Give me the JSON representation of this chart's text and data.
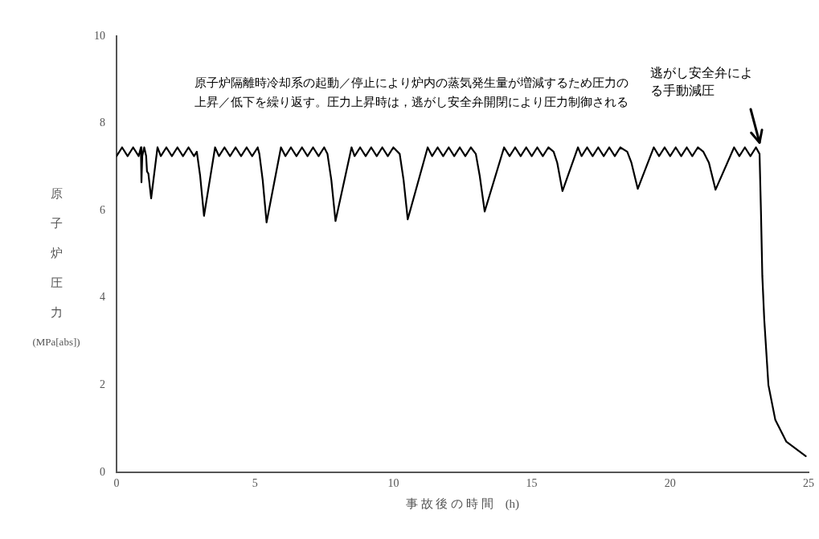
{
  "chart_data": {
    "type": "line",
    "xlabel": "事故後の時間 (h)",
    "ylabel": "原子炉圧力 (MPa[abs])",
    "xlim": [
      0,
      25
    ],
    "xticks": [
      0,
      5,
      10,
      15,
      20,
      25
    ],
    "ylim": [
      0,
      10
    ],
    "yticks": [
      0,
      2,
      4,
      6,
      8,
      10
    ],
    "grid": false,
    "legend": false,
    "marker": "none",
    "line_style": "solid",
    "series": [
      {
        "color": "#000000",
        "x": [
          0,
          0.2,
          0.4,
          0.6,
          0.8,
          0.88,
          0.9,
          0.93,
          1.0,
          1.07,
          1.1,
          1.15,
          1.25,
          1.48,
          1.6,
          1.8,
          2.0,
          2.2,
          2.4,
          2.6,
          2.8,
          2.9,
          3.02,
          3.16,
          3.56,
          3.7,
          3.9,
          4.1,
          4.3,
          4.5,
          4.7,
          4.9,
          5.1,
          5.16,
          5.28,
          5.42,
          5.94,
          6.1,
          6.3,
          6.5,
          6.7,
          6.9,
          7.1,
          7.3,
          7.5,
          7.62,
          7.76,
          7.91,
          8.49,
          8.6,
          8.8,
          9.0,
          9.2,
          9.4,
          9.6,
          9.8,
          10.0,
          10.23,
          10.37,
          10.52,
          11.24,
          11.4,
          11.6,
          11.8,
          12.0,
          12.2,
          12.4,
          12.6,
          12.8,
          12.98,
          13.12,
          13.3,
          14.0,
          14.2,
          14.4,
          14.6,
          14.8,
          15.0,
          15.2,
          15.4,
          15.6,
          15.79,
          15.92,
          16.11,
          16.67,
          16.8,
          17.0,
          17.2,
          17.4,
          17.6,
          17.8,
          18.0,
          18.2,
          18.45,
          18.6,
          18.83,
          19.41,
          19.6,
          19.8,
          20.0,
          20.2,
          20.4,
          20.6,
          20.8,
          21.0,
          21.2,
          21.4,
          21.64,
          22.31,
          22.5,
          22.7,
          22.9,
          23.1,
          23.23,
          23.28,
          23.33,
          23.4,
          23.55,
          23.8,
          24.2,
          24.9
        ],
        "values": [
          7.25,
          7.45,
          7.25,
          7.45,
          7.25,
          7.45,
          6.65,
          7.25,
          7.45,
          7.25,
          6.9,
          6.85,
          6.28,
          7.45,
          7.25,
          7.45,
          7.25,
          7.45,
          7.25,
          7.45,
          7.25,
          7.35,
          6.8,
          5.88,
          7.45,
          7.25,
          7.45,
          7.25,
          7.45,
          7.25,
          7.45,
          7.25,
          7.45,
          7.3,
          6.7,
          5.73,
          7.45,
          7.25,
          7.45,
          7.25,
          7.45,
          7.25,
          7.45,
          7.25,
          7.45,
          7.3,
          6.7,
          5.76,
          7.45,
          7.25,
          7.45,
          7.25,
          7.45,
          7.25,
          7.45,
          7.25,
          7.45,
          7.3,
          6.7,
          5.8,
          7.45,
          7.25,
          7.45,
          7.25,
          7.45,
          7.25,
          7.45,
          7.25,
          7.45,
          7.3,
          6.8,
          5.98,
          7.45,
          7.25,
          7.45,
          7.25,
          7.45,
          7.25,
          7.45,
          7.25,
          7.45,
          7.35,
          7.1,
          6.45,
          7.45,
          7.25,
          7.45,
          7.25,
          7.45,
          7.25,
          7.45,
          7.25,
          7.45,
          7.35,
          7.1,
          6.5,
          7.45,
          7.25,
          7.45,
          7.25,
          7.45,
          7.25,
          7.45,
          7.25,
          7.45,
          7.35,
          7.1,
          6.48,
          7.45,
          7.25,
          7.45,
          7.25,
          7.45,
          7.3,
          6.0,
          4.5,
          3.5,
          2.0,
          1.2,
          0.7,
          0.37
        ]
      }
    ],
    "annotations": [
      "原子炉隔離時冷却系の起動／停止により炉内の蒸気発生量が増減するため圧力の上昇／低下を繰り返す。圧力上昇時は，逃がし安全弁開閉により圧力制御される",
      {
        "text": "逃がし安全弁による手動減圧",
        "x": 23.2,
        "y": 7.45
      }
    ]
  }
}
